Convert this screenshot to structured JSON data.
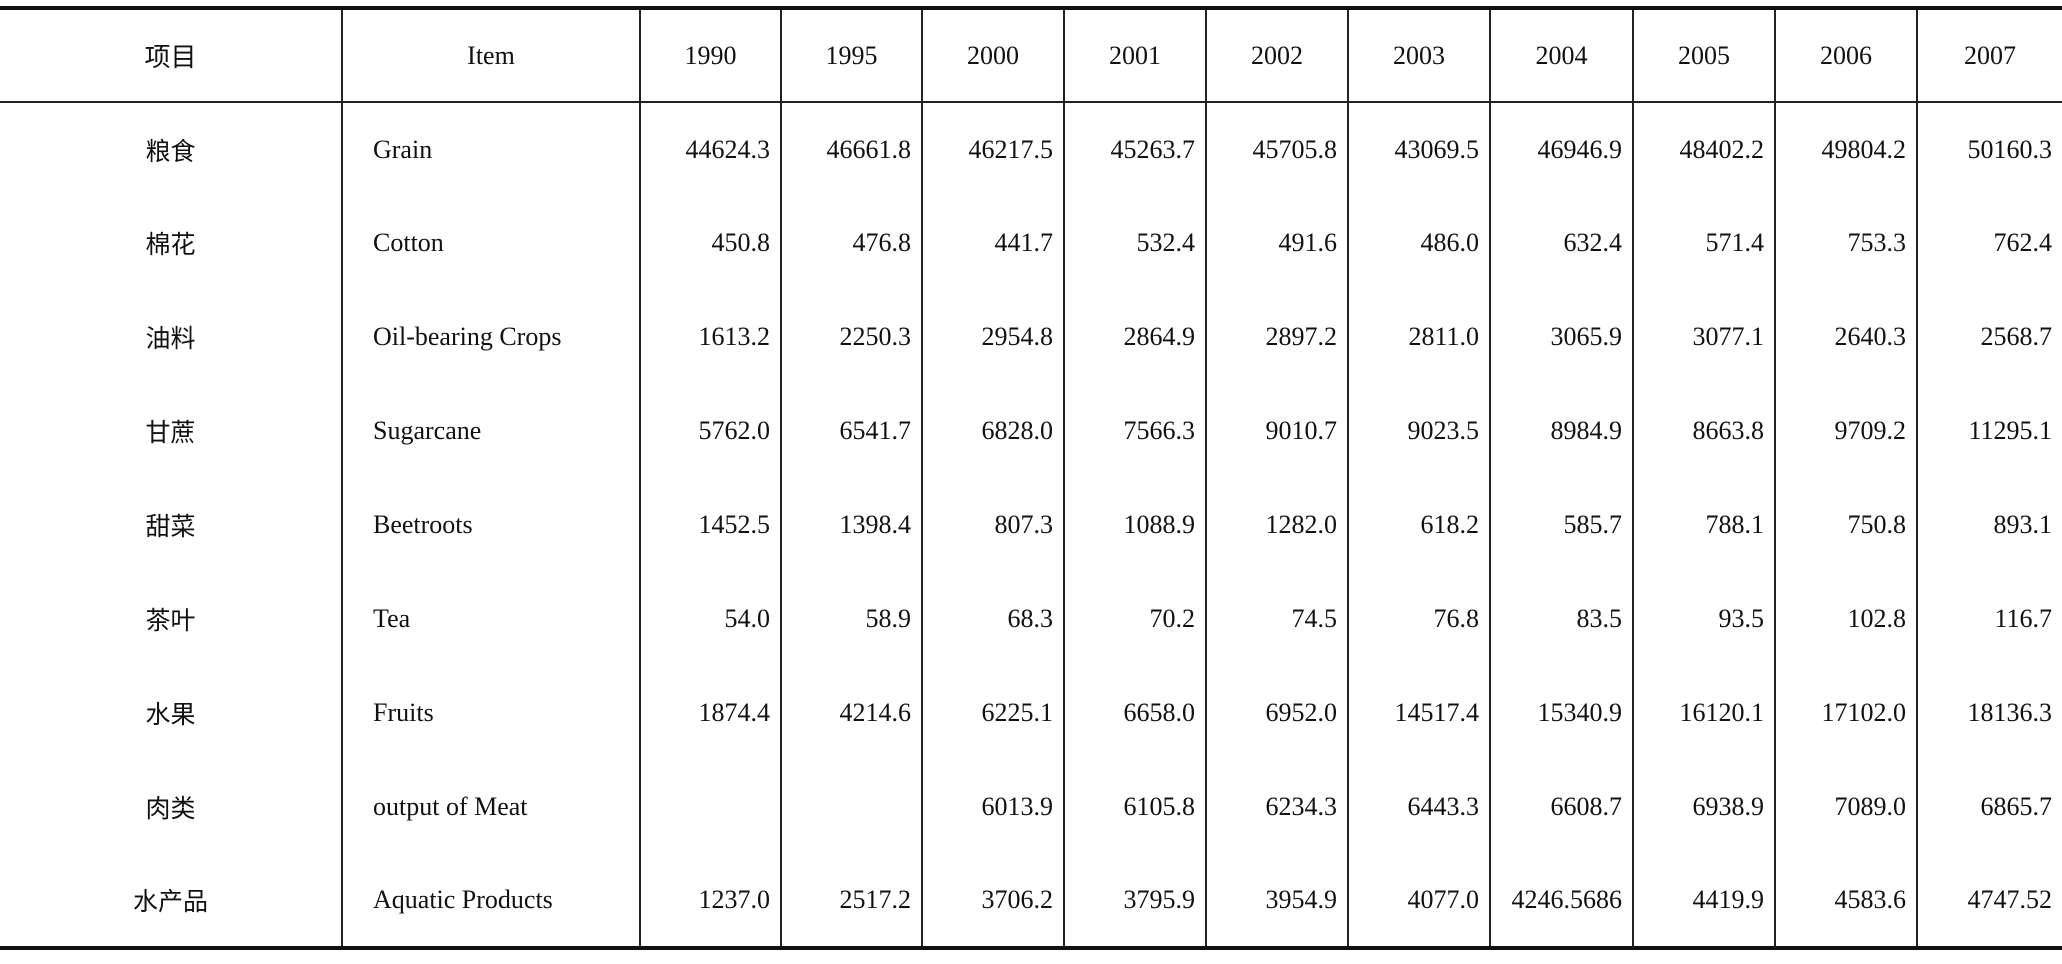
{
  "table": {
    "header": [
      "项目",
      "Item",
      "1990",
      "1995",
      "2000",
      "2001",
      "2002",
      "2003",
      "2004",
      "2005",
      "2006",
      "2007"
    ],
    "rows": [
      [
        "粮食",
        "Grain",
        "44624.3",
        "46661.8",
        "46217.5",
        "45263.7",
        "45705.8",
        "43069.5",
        "46946.9",
        "48402.2",
        "49804.2",
        "50160.3"
      ],
      [
        "棉花",
        "Cotton",
        "450.8",
        "476.8",
        "441.7",
        "532.4",
        "491.6",
        "486.0",
        "632.4",
        "571.4",
        "753.3",
        "762.4"
      ],
      [
        "油料",
        "Oil-bearing  Crops",
        "1613.2",
        "2250.3",
        "2954.8",
        "2864.9",
        "2897.2",
        "2811.0",
        "3065.9",
        "3077.1",
        "2640.3",
        "2568.7"
      ],
      [
        "甘蔗",
        "Sugarcane",
        "5762.0",
        "6541.7",
        "6828.0",
        "7566.3",
        "9010.7",
        "9023.5",
        "8984.9",
        "8663.8",
        "9709.2",
        "11295.1"
      ],
      [
        "甜菜",
        "Beetroots",
        "1452.5",
        "1398.4",
        "807.3",
        "1088.9",
        "1282.0",
        "618.2",
        "585.7",
        "788.1",
        "750.8",
        "893.1"
      ],
      [
        "茶叶",
        "Tea",
        "54.0",
        "58.9",
        "68.3",
        "70.2",
        "74.5",
        "76.8",
        "83.5",
        "93.5",
        "102.8",
        "116.7"
      ],
      [
        "水果",
        "Fruits",
        "1874.4",
        "4214.6",
        "6225.1",
        "6658.0",
        "6952.0",
        "14517.4",
        "15340.9",
        "16120.1",
        "17102.0",
        "18136.3"
      ],
      [
        "肉类",
        "output of Meat",
        null,
        null,
        "6013.9",
        "6105.8",
        "6234.3",
        "6443.3",
        "6608.7",
        "6938.9",
        "7089.0",
        "6865.7"
      ],
      [
        "水产品",
        "Aquatic Products",
        "1237.0",
        "2517.2",
        "3706.2",
        "3795.9",
        "3954.9",
        "4077.0",
        "4246.5686",
        "4419.9",
        "4583.6",
        "4747.52"
      ]
    ]
  }
}
